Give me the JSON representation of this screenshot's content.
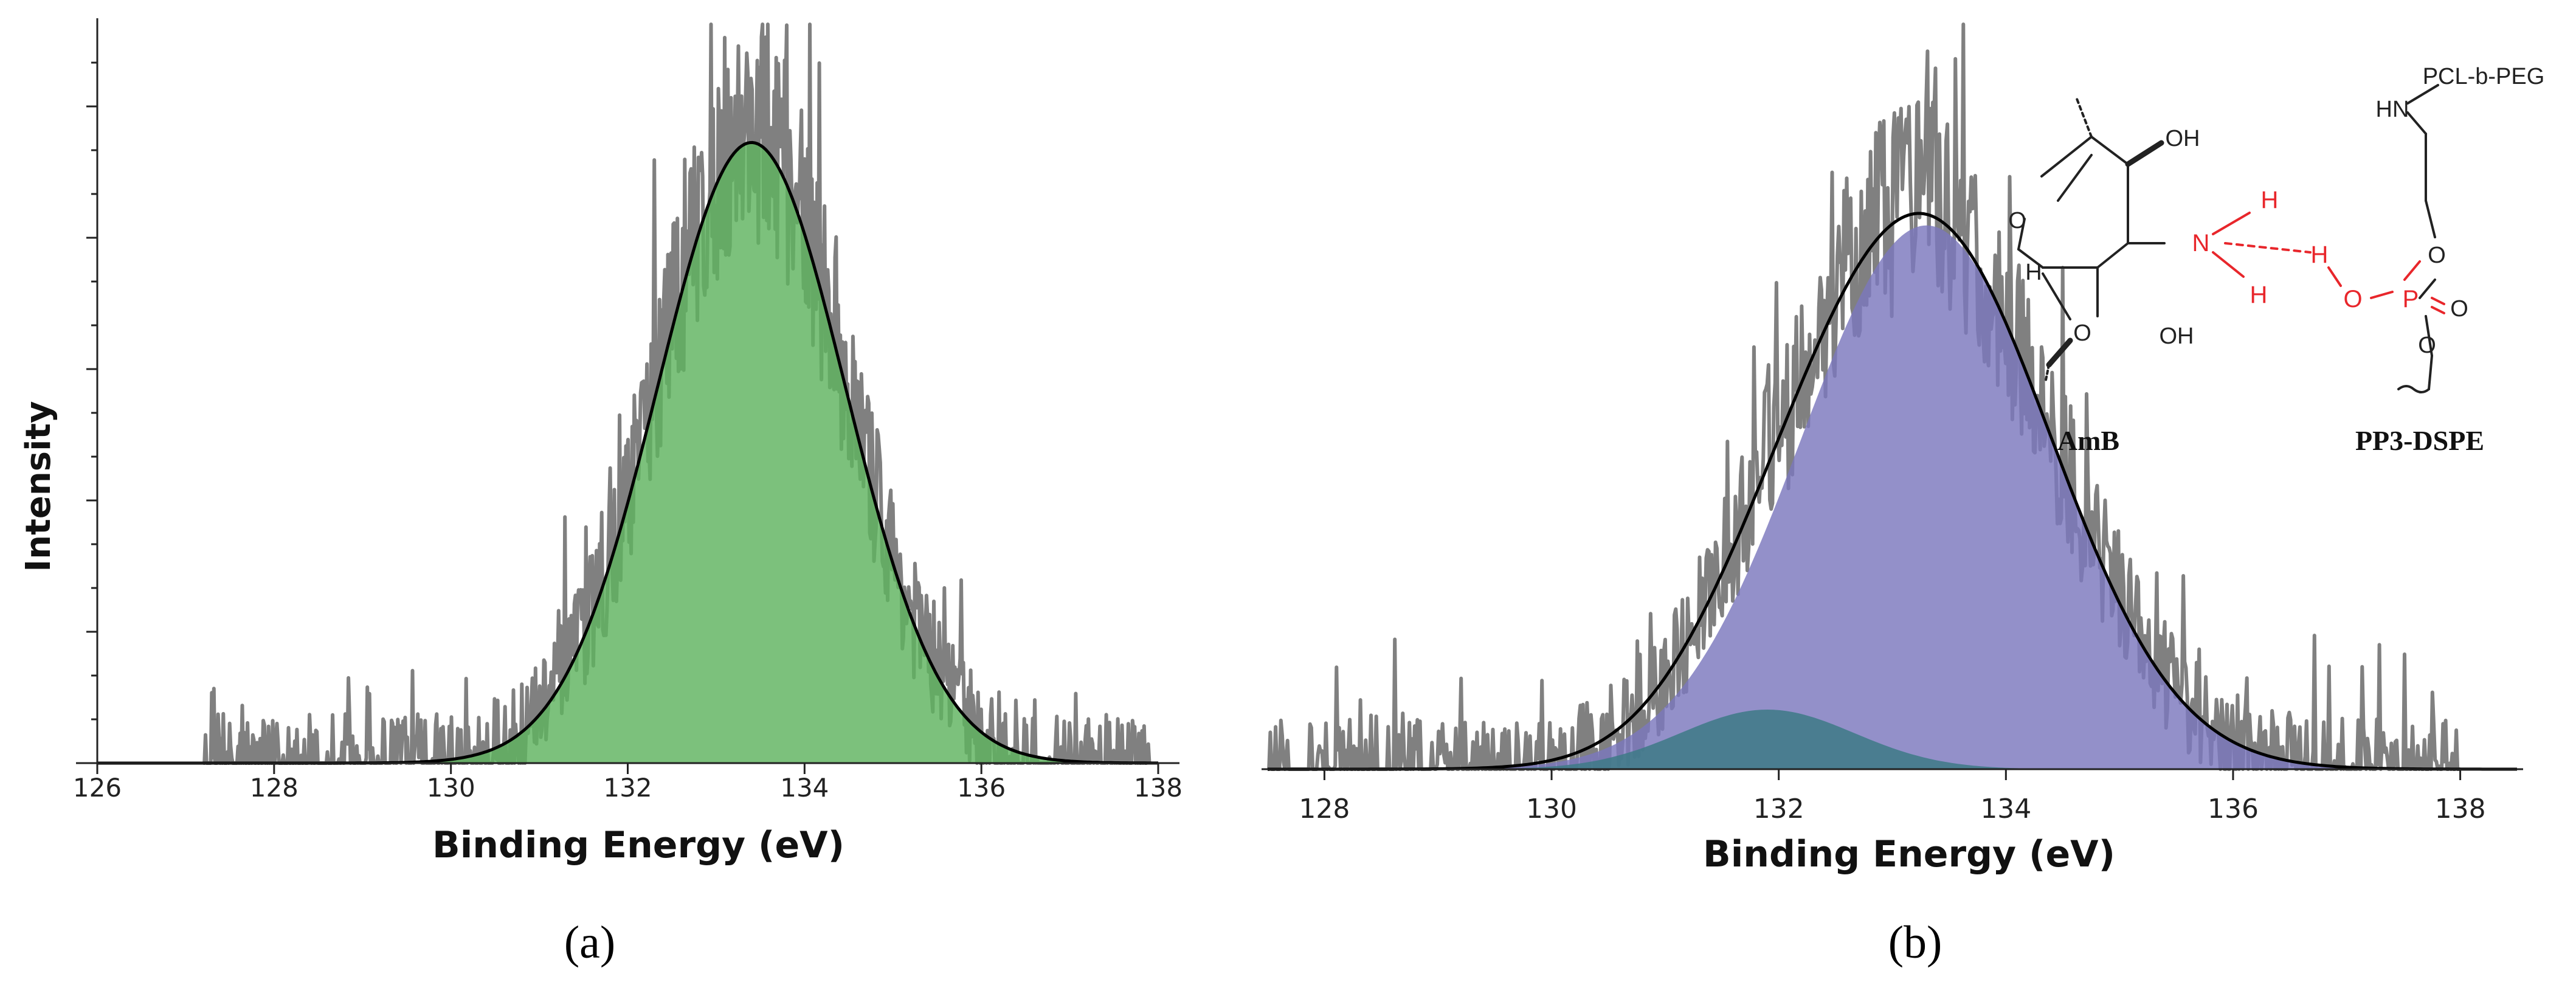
{
  "chart_data": [
    {
      "panel": "a",
      "type": "area",
      "caption": "(a)",
      "xlabel": "Binding Energy (eV)",
      "ylabel": "Intensity",
      "xlim": [
        126,
        138
      ],
      "ylim": [
        0,
        1
      ],
      "xticks": [
        "126",
        "128",
        "130",
        "132",
        "134",
        "136",
        "138"
      ],
      "grid": false,
      "raw_x_range": [
        127.2,
        137.9
      ],
      "raw_color": "#808080",
      "series": [
        {
          "kind": "fit-peak",
          "center": 133.4,
          "fwhm": 2.5,
          "height": 0.84,
          "fill": "#5fb35f",
          "fill_opacity": 0.82,
          "line": "#000000"
        }
      ]
    },
    {
      "panel": "b",
      "type": "area",
      "caption": "(b)",
      "xlabel": "Binding Energy (eV)",
      "ylabel": "",
      "xlim": [
        127.5,
        138.5
      ],
      "ylim": [
        0,
        1
      ],
      "xticks": [
        "128",
        "130",
        "132",
        "134",
        "136",
        "138"
      ],
      "grid": false,
      "raw_x_range": [
        127.5,
        138.0
      ],
      "raw_color": "#808080",
      "series": [
        {
          "kind": "fit-peak",
          "center": 133.3,
          "fwhm": 2.6,
          "height": 0.73,
          "fill": "#7b78bd",
          "fill_opacity": 0.82
        },
        {
          "kind": "fit-peak",
          "center": 131.9,
          "fwhm": 1.8,
          "height": 0.08,
          "fill": "#3d7a86",
          "fill_opacity": 0.85
        },
        {
          "kind": "envelope",
          "line": "#000000"
        }
      ]
    }
  ],
  "inset": {
    "amb_label": "AmB",
    "pp3_label": "PP3-DSPE",
    "pcl_peg": "PCL-b-PEG",
    "hn": "HN",
    "oh_top": "OH",
    "oh_bottom": "OH",
    "ring_o": "O",
    "ring_h": "H",
    "ring_o2": "O",
    "n": "N",
    "h_top": "H",
    "h_bottom": "H",
    "h_bond": "H",
    "o_ph": "O",
    "p": "P",
    "o_dbl": "O",
    "o_up": "O",
    "o_down": "O",
    "accent": "#e8262b"
  }
}
